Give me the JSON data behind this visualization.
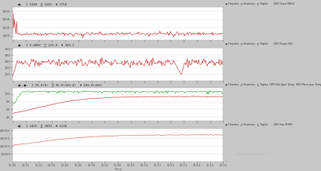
{
  "bg_color": "#c8c8c8",
  "panel_bg": "#ffffff",
  "header_bg": "#e0e0e0",
  "n_points": 300,
  "time_labels": [
    "00:00",
    "00:01",
    "00:02",
    "00:03",
    "00:04",
    "00:05",
    "00:06",
    "00:07",
    "00:08",
    "00:09",
    "00:10",
    "00:11",
    "00:12",
    "00:13",
    "00:14",
    "00:15",
    "00:16"
  ],
  "panel1": {
    "title": "GPU Clock (MHz)",
    "ylim": [
      1300,
      2100
    ],
    "yticks": [
      1400,
      1600,
      1800,
      2000
    ],
    "color": "#cc3333"
  },
  "panel2": {
    "title": "GPU Power (W)",
    "ylim": [
      100,
      360
    ],
    "yticks": [
      150,
      200,
      250,
      300,
      350
    ],
    "color": "#cc3333"
  },
  "panel3": {
    "title1": "GPU Hot Spot Temperature",
    "title2": "GPU Memory Junction Temperature",
    "ylim": [
      30,
      115
    ],
    "yticks": [
      40,
      60,
      80,
      100
    ],
    "color_red": "#cc3333",
    "color_green": "#33aa33"
  },
  "panel4": {
    "title": "GPU Fan (RPM)",
    "ylim": [
      0,
      42000
    ],
    "yticks": [
      10000,
      20000,
      30000,
      40000
    ],
    "color": "#dd6666"
  }
}
